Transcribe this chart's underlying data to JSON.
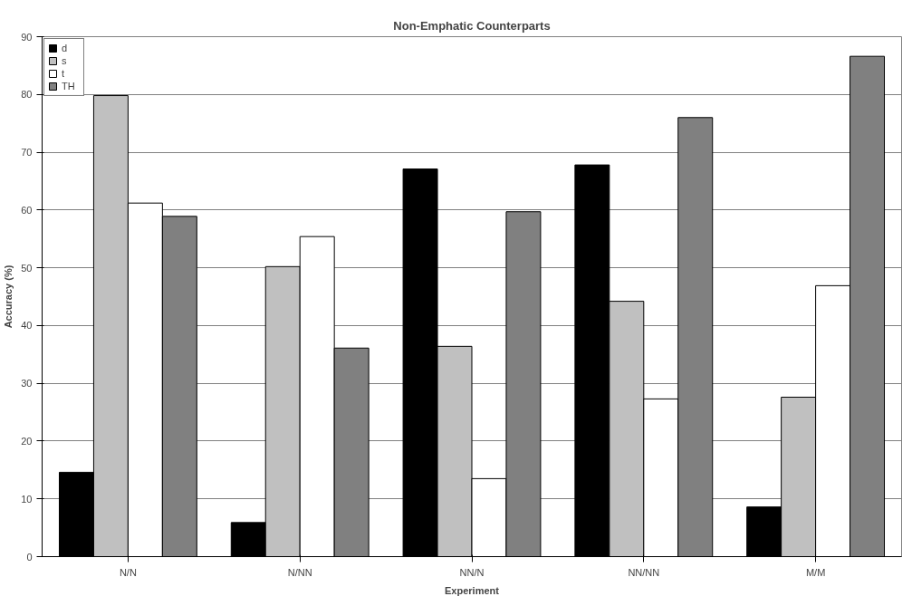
{
  "chart_data": {
    "type": "bar",
    "title": "Non-Emphatic Counterparts",
    "xlabel": "Experiment",
    "ylabel": "Accuracy (%)",
    "categories": [
      "N/N",
      "N/NN",
      "NN/N",
      "NN/NN",
      "M/M"
    ],
    "series": [
      {
        "name": "d",
        "color": "#000000",
        "values": [
          14.6,
          5.9,
          67.1,
          67.8,
          8.6
        ]
      },
      {
        "name": "s",
        "color": "#c0c0c0",
        "values": [
          79.8,
          50.2,
          36.4,
          44.2,
          27.6
        ]
      },
      {
        "name": "t",
        "color": "#ffffff",
        "values": [
          61.2,
          55.4,
          13.5,
          27.3,
          46.9
        ]
      },
      {
        "name": "TH",
        "color": "#808080",
        "values": [
          58.9,
          36.1,
          59.7,
          76.0,
          86.6
        ]
      }
    ],
    "ylim": [
      0,
      90
    ],
    "yticks": [
      0,
      10,
      20,
      30,
      40,
      50,
      60,
      70,
      80,
      90
    ],
    "grid": "y",
    "legend": "top left"
  }
}
